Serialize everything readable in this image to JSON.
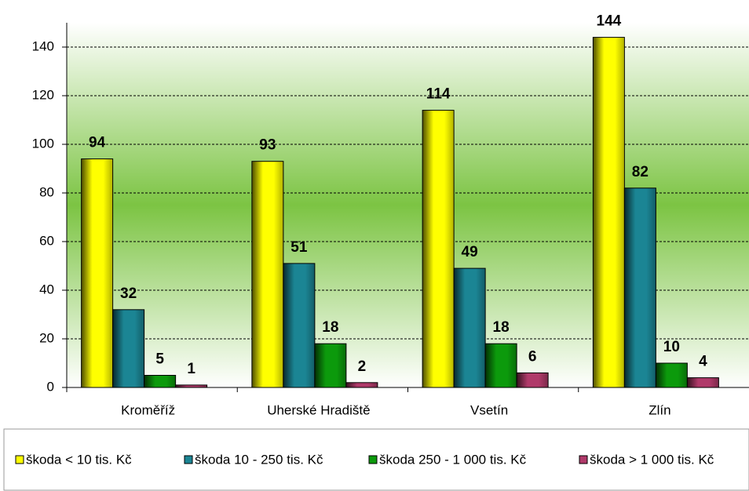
{
  "chart_data": {
    "type": "bar",
    "categories": [
      "Kroměříž",
      "Uherské Hradiště",
      "Vsetín",
      "Zlín"
    ],
    "series": [
      {
        "name": "škoda < 10 tis. Kč",
        "color": "#ffff00",
        "values": [
          94,
          93,
          114,
          144
        ]
      },
      {
        "name": "škoda 10 - 250 tis. Kč",
        "color": "#1b8594",
        "values": [
          32,
          51,
          49,
          82
        ]
      },
      {
        "name": "škoda 250 - 1 000 tis. Kč",
        "color": "#0c9a0c",
        "values": [
          5,
          18,
          18,
          10
        ]
      },
      {
        "name": "škoda > 1 000 tis. Kč",
        "color": "#b03a6a",
        "values": [
          1,
          2,
          6,
          4
        ]
      }
    ],
    "ylim": [
      0,
      150
    ],
    "yticks": [
      0,
      20,
      40,
      60,
      80,
      100,
      120,
      140
    ],
    "grid": true,
    "legend": "bottom"
  }
}
